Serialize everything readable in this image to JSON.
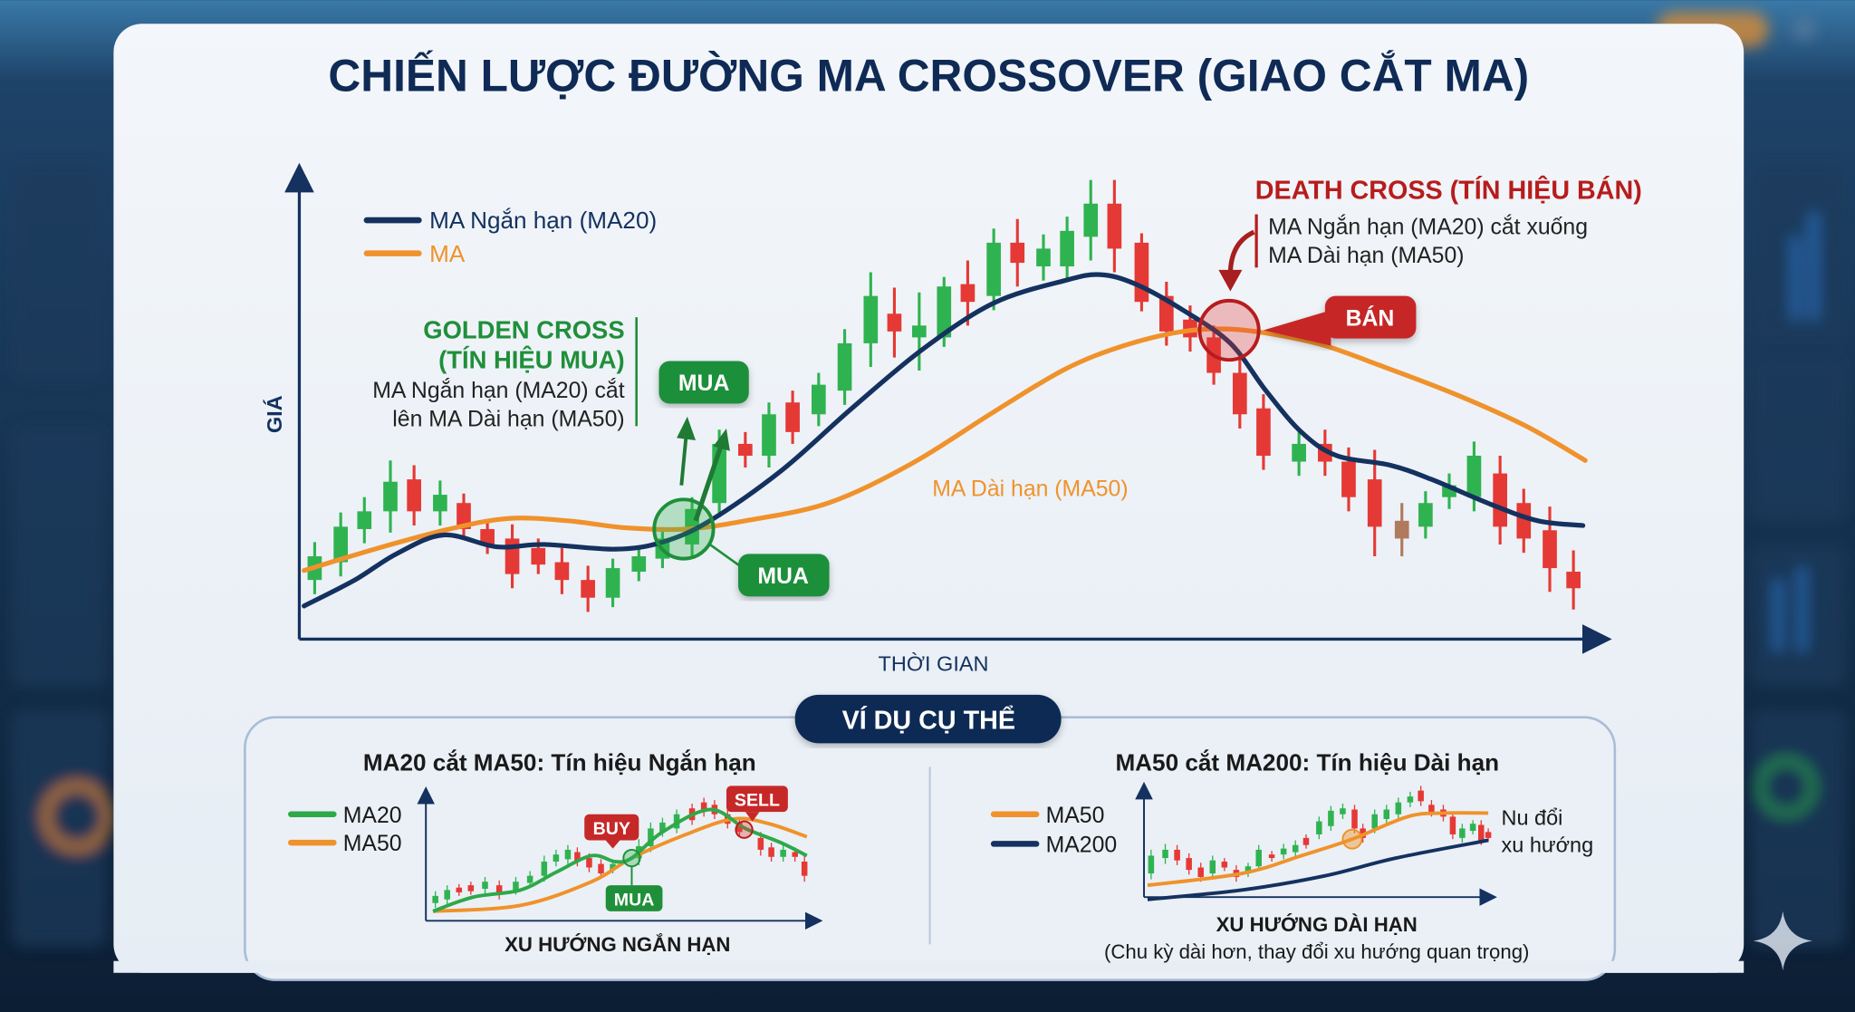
{
  "title": "CHIẾN LƯỢC ĐƯỜNG MA CROSSOVER (GIAO CẮT MA)",
  "colors": {
    "navy": "#14315f",
    "orange": "#f0922b",
    "green": "#1f8f3a",
    "red": "#c62828",
    "candle_up": "#2fb350",
    "candle_down": "#e53935"
  },
  "main_chart": {
    "y_axis_label": "GIÁ",
    "x_axis_label": "THỜI GIAN",
    "legend": [
      {
        "label": "MA Ngắn hạn (MA20)",
        "color": "#14315f"
      },
      {
        "label": "MA",
        "color": "#f0922b"
      }
    ],
    "ma50_label": "MA Dài hạn (MA50)",
    "golden_cross": {
      "title_line1": "GOLDEN CROSS",
      "title_line2": "(TÍN HIỆU MUA)",
      "desc_line1": "MA Ngắn hạn (MA20) cắt",
      "desc_line2": "lên MA Dài hạn (MA50)",
      "badge_top": "MUA",
      "badge_bottom": "MUA"
    },
    "death_cross": {
      "title": "DEATH CROSS (TÍN HIỆU BÁN)",
      "desc_line1": "MA Ngắn hạn (MA20) cắt xuống",
      "desc_line2": "MA Dài hạn (MA50)",
      "badge": "BÁN"
    }
  },
  "examples": {
    "badge": "VÍ DỤ CỤ THỂ",
    "short_term": {
      "title": "MA20 cắt MA50: Tín hiệu Ngắn hạn",
      "legend": [
        "MA20",
        "MA50"
      ],
      "buy": "BUY",
      "sell": "SELL",
      "mua": "MUA",
      "x_label": "XU HƯỚNG NGẮN HẠN"
    },
    "long_term": {
      "title": "MA50 cắt MA200: Tín hiệu Dài hạn",
      "legend": [
        "MA50",
        "MA200"
      ],
      "note_line1": "Nu đổi",
      "note_line2": "xu hướng",
      "x_label": "XU HƯỚNG DÀI HẠN",
      "sub_label": "(Chu kỳ dài hơn, thay đổi xu hướng quan trọng)"
    }
  }
}
